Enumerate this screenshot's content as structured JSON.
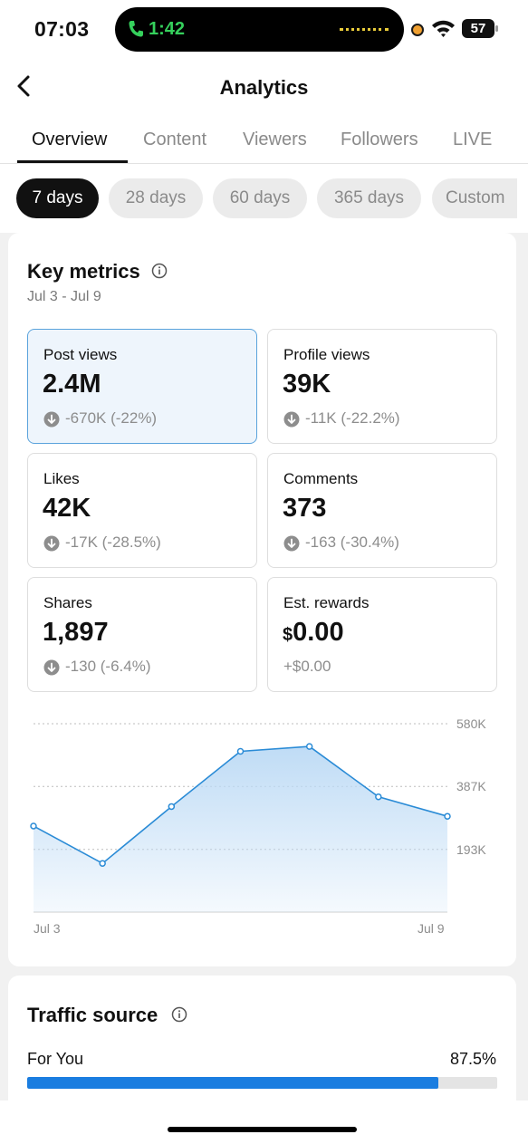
{
  "status_bar": {
    "time": "07:03",
    "call_time": "1:42",
    "battery": "57",
    "icons": [
      "phone-icon",
      "wifi-icon",
      "battery-icon",
      "recording-dot-icon"
    ]
  },
  "header": {
    "title": "Analytics",
    "back_icon": "chevron-left-icon"
  },
  "tabs": [
    "Overview",
    "Content",
    "Viewers",
    "Followers",
    "LIVE"
  ],
  "active_tab": "Overview",
  "date_chips": [
    "7 days",
    "28 days",
    "60 days",
    "365 days",
    "Custom"
  ],
  "active_chip": "7 days",
  "key_metrics": {
    "title": "Key metrics",
    "date_range": "Jul 3 - Jul 9",
    "metrics": [
      {
        "label": "Post views",
        "value": "2.4M",
        "change": "-670K (-22%)",
        "direction": "down",
        "selected": true
      },
      {
        "label": "Profile views",
        "value": "39K",
        "change": "-11K (-22.2%)",
        "direction": "down"
      },
      {
        "label": "Likes",
        "value": "42K",
        "change": "-17K (-28.5%)",
        "direction": "down"
      },
      {
        "label": "Comments",
        "value": "373",
        "change": "-163 (-30.4%)",
        "direction": "down"
      },
      {
        "label": "Shares",
        "value": "1,897",
        "change": "-130 (-6.4%)",
        "direction": "down"
      },
      {
        "label": "Est. rewards",
        "currency": "$",
        "value": "0.00",
        "change": "+$0.00",
        "direction": "none"
      }
    ]
  },
  "chart_data": {
    "type": "area",
    "x": [
      "Jul 3",
      "Jul 4",
      "Jul 5",
      "Jul 6",
      "Jul 7",
      "Jul 8",
      "Jul 9"
    ],
    "x_tick_labels": [
      "Jul 3",
      "Jul 9"
    ],
    "y_tick_labels": [
      "580K",
      "387K",
      "193K"
    ],
    "y_ticks": [
      580000,
      387000,
      193000
    ],
    "ylim": [
      0,
      580000
    ],
    "values": [
      265000,
      150000,
      325000,
      495000,
      510000,
      355000,
      295000
    ],
    "grid": "horizontal dotted",
    "color": "#2a8bd6",
    "fill_color": "#bcdaf5"
  },
  "traffic_source": {
    "title": "Traffic source",
    "items": [
      {
        "label": "For You",
        "percent_label": "87.5%",
        "percent": 87.5
      }
    ],
    "bar_color": "#1a7de0"
  }
}
